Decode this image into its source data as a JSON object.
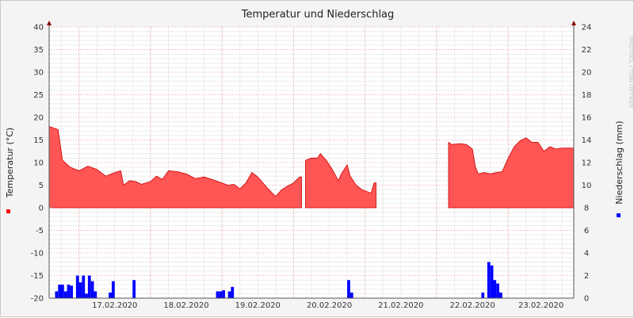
{
  "chart_data": {
    "type": "area",
    "title": "Temperatur und Niederschlag",
    "watermark": "RRDTOOL / TOBI OETIKER",
    "y_left": {
      "label": "Temperatur (°C)",
      "range": [
        -20,
        40
      ],
      "ticks": [
        -20,
        -15,
        -10,
        -5,
        0,
        5,
        10,
        15,
        20,
        25,
        30,
        35,
        40
      ]
    },
    "y_right": {
      "label": "Niederschlag (mm)",
      "range": [
        0,
        24
      ],
      "ticks": [
        0,
        2,
        4,
        6,
        8,
        10,
        12,
        14,
        16,
        18,
        20,
        22,
        24
      ]
    },
    "x": {
      "start": "2020-02-16T14:00",
      "end": "2020-02-23T22:00",
      "tick_labels": [
        "17.02.2020",
        "18.02.2020",
        "19.02.2020",
        "20.02.2020",
        "21.02.2020",
        "22.02.2020",
        "23.02.2020"
      ]
    },
    "grid": true,
    "legend": {
      "temperature_color": "#ff0000",
      "precipitation_color": "#0000ff"
    },
    "series": [
      {
        "name": "",
        "color": "#ff5555",
        "segments": [
          [
            [
              "2020-02-16T14:00",
              18.0
            ],
            [
              "2020-02-16T17:00",
              17.3
            ],
            [
              "2020-02-16T18:30",
              10.5
            ],
            [
              "2020-02-16T21:00",
              9.0
            ],
            [
              "2020-02-17T00:00",
              8.2
            ],
            [
              "2020-02-17T03:00",
              9.2
            ],
            [
              "2020-02-17T06:00",
              8.5
            ],
            [
              "2020-02-17T09:00",
              7.0
            ],
            [
              "2020-02-17T12:00",
              7.8
            ],
            [
              "2020-02-17T14:00",
              8.2
            ],
            [
              "2020-02-17T15:00",
              5.0
            ],
            [
              "2020-02-17T17:00",
              6.0
            ],
            [
              "2020-02-17T19:00",
              5.8
            ],
            [
              "2020-02-17T21:00",
              5.2
            ],
            [
              "2020-02-18T00:00",
              5.8
            ],
            [
              "2020-02-18T02:00",
              7.0
            ],
            [
              "2020-02-18T04:00",
              6.3
            ],
            [
              "2020-02-18T06:00",
              8.2
            ],
            [
              "2020-02-18T09:00",
              8.0
            ],
            [
              "2020-02-18T12:00",
              7.5
            ],
            [
              "2020-02-18T15:00",
              6.5
            ],
            [
              "2020-02-18T18:00",
              6.8
            ],
            [
              "2020-02-18T21:00",
              6.2
            ],
            [
              "2020-02-19T00:00",
              5.5
            ],
            [
              "2020-02-19T02:00",
              5.0
            ],
            [
              "2020-02-19T04:00",
              5.2
            ],
            [
              "2020-02-19T06:00",
              4.2
            ],
            [
              "2020-02-19T08:00",
              5.5
            ],
            [
              "2020-02-19T10:00",
              7.8
            ],
            [
              "2020-02-19T12:00",
              6.8
            ],
            [
              "2020-02-19T15:00",
              4.5
            ],
            [
              "2020-02-19T18:00",
              2.5
            ],
            [
              "2020-02-19T20:00",
              4.0
            ],
            [
              "2020-02-19T22:00",
              4.8
            ],
            [
              "2020-02-20T00:00",
              5.5
            ],
            [
              "2020-02-20T02:00",
              6.8
            ],
            [
              "2020-02-20T02:40",
              6.8
            ]
          ],
          [
            [
              "2020-02-20T04:00",
              10.5
            ],
            [
              "2020-02-20T06:00",
              11.0
            ],
            [
              "2020-02-20T08:00",
              11.0
            ],
            [
              "2020-02-20T09:00",
              12.0
            ],
            [
              "2020-02-20T11:00",
              10.5
            ],
            [
              "2020-02-20T13:00",
              8.5
            ],
            [
              "2020-02-20T15:00",
              6.0
            ],
            [
              "2020-02-20T16:00",
              7.5
            ],
            [
              "2020-02-20T18:00",
              9.5
            ],
            [
              "2020-02-20T19:00",
              7.0
            ],
            [
              "2020-02-20T21:00",
              5.0
            ],
            [
              "2020-02-20T23:00",
              4.0
            ],
            [
              "2020-02-21T01:00",
              3.5
            ],
            [
              "2020-02-21T02:00",
              3.2
            ],
            [
              "2020-02-21T03:00",
              5.5
            ],
            [
              "2020-02-21T03:40",
              5.5
            ]
          ],
          [
            [
              "2020-02-22T04:00",
              14.5
            ],
            [
              "2020-02-22T05:00",
              14.0
            ],
            [
              "2020-02-22T08:00",
              14.2
            ],
            [
              "2020-02-22T10:00",
              14.0
            ],
            [
              "2020-02-22T12:00",
              13.0
            ],
            [
              "2020-02-22T13:00",
              9.0
            ],
            [
              "2020-02-22T14:00",
              7.5
            ],
            [
              "2020-02-22T16:00",
              7.8
            ],
            [
              "2020-02-22T18:00",
              7.5
            ],
            [
              "2020-02-22T20:00",
              7.8
            ],
            [
              "2020-02-22T22:00",
              8.0
            ],
            [
              "2020-02-23T00:00",
              11.0
            ],
            [
              "2020-02-23T02:00",
              13.5
            ],
            [
              "2020-02-23T04:00",
              14.8
            ],
            [
              "2020-02-23T06:00",
              15.5
            ],
            [
              "2020-02-23T08:00",
              14.5
            ],
            [
              "2020-02-23T10:00",
              14.5
            ],
            [
              "2020-02-23T12:00",
              12.5
            ],
            [
              "2020-02-23T14:00",
              13.5
            ],
            [
              "2020-02-23T16:00",
              13.0
            ],
            [
              "2020-02-23T18:00",
              13.2
            ],
            [
              "2020-02-23T22:00",
              13.2
            ]
          ]
        ]
      },
      {
        "name": "",
        "color": "#0000ff",
        "bar_hours": 1,
        "bars": [
          [
            "2020-02-16T16:00",
            0.6
          ],
          [
            "2020-02-16T17:00",
            1.2
          ],
          [
            "2020-02-16T18:00",
            1.2
          ],
          [
            "2020-02-16T19:00",
            0.6
          ],
          [
            "2020-02-16T20:00",
            1.2
          ],
          [
            "2020-02-16T21:00",
            1.1
          ],
          [
            "2020-02-16T23:00",
            2.0
          ],
          [
            "2020-02-17T00:00",
            1.4
          ],
          [
            "2020-02-17T01:00",
            2.0
          ],
          [
            "2020-02-17T02:00",
            0.4
          ],
          [
            "2020-02-17T03:00",
            2.0
          ],
          [
            "2020-02-17T04:00",
            1.5
          ],
          [
            "2020-02-17T05:00",
            0.6
          ],
          [
            "2020-02-17T10:00",
            0.5
          ],
          [
            "2020-02-17T11:00",
            1.5
          ],
          [
            "2020-02-17T18:00",
            1.6
          ],
          [
            "2020-02-18T22:00",
            0.6
          ],
          [
            "2020-02-18T23:00",
            0.6
          ],
          [
            "2020-02-19T00:00",
            0.7
          ],
          [
            "2020-02-19T02:00",
            0.6
          ],
          [
            "2020-02-19T03:00",
            1.0
          ],
          [
            "2020-02-20T18:00",
            1.6
          ],
          [
            "2020-02-20T19:00",
            0.5
          ],
          [
            "2020-02-22T15:00",
            0.5
          ],
          [
            "2020-02-22T17:00",
            3.2
          ],
          [
            "2020-02-22T18:00",
            2.9
          ],
          [
            "2020-02-22T19:00",
            1.6
          ],
          [
            "2020-02-22T20:00",
            1.3
          ],
          [
            "2020-02-22T21:00",
            0.5
          ]
        ]
      }
    ]
  }
}
